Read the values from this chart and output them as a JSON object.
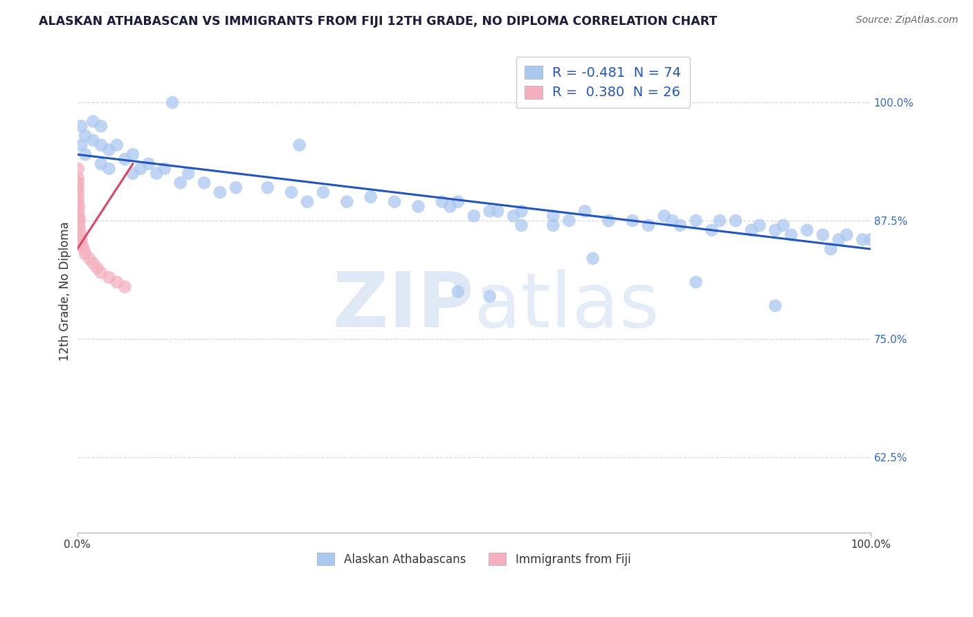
{
  "title": "ALASKAN ATHABASCAN VS IMMIGRANTS FROM FIJI 12TH GRADE, NO DIPLOMA CORRELATION CHART",
  "source": "Source: ZipAtlas.com",
  "ylabel": "12th Grade, No Diploma",
  "right_yticks": [
    0.625,
    0.75,
    0.875,
    1.0
  ],
  "right_yticklabels": [
    "62.5%",
    "75.0%",
    "87.5%",
    "100.0%"
  ],
  "xlim": [
    0.0,
    1.0
  ],
  "ylim": [
    0.545,
    1.055
  ],
  "legend1_label": "R = -0.481  N = 74",
  "legend2_label": "R =  0.380  N = 26",
  "legend1_color": "#aac8f0",
  "legend2_color": "#f4b0c0",
  "blue_scatter_color": "#aac8f0",
  "pink_scatter_color": "#f4b0c0",
  "blue_line_color": "#2255bb",
  "pink_line_color": "#dd4466",
  "watermark_zip": "ZIP",
  "watermark_atlas": "atlas",
  "watermark_color_zip": "#c5d8ee",
  "watermark_color_atlas": "#c5d8ee",
  "grid_color": "#d0d8e8",
  "bg_color": "#ffffff",
  "title_color": "#1a1a3a",
  "axis_color": "#333333",
  "blue_x": [
    0.005,
    0.005,
    0.01,
    0.01,
    0.02,
    0.02,
    0.03,
    0.03,
    0.03,
    0.04,
    0.04,
    0.05,
    0.06,
    0.07,
    0.07,
    0.08,
    0.09,
    0.1,
    0.11,
    0.13,
    0.14,
    0.16,
    0.18,
    0.2,
    0.24,
    0.27,
    0.29,
    0.31,
    0.34,
    0.37,
    0.4,
    0.43,
    0.46,
    0.47,
    0.48,
    0.5,
    0.52,
    0.53,
    0.55,
    0.56,
    0.6,
    0.62,
    0.64,
    0.67,
    0.7,
    0.72,
    0.74,
    0.75,
    0.76,
    0.78,
    0.8,
    0.81,
    0.83,
    0.85,
    0.86,
    0.88,
    0.89,
    0.9,
    0.92,
    0.94,
    0.96,
    0.97,
    0.99,
    1.0,
    0.12,
    0.28,
    0.48,
    0.52,
    0.56,
    0.6,
    0.65,
    0.78,
    0.88,
    0.95
  ],
  "blue_y": [
    0.955,
    0.975,
    0.945,
    0.965,
    0.96,
    0.98,
    0.935,
    0.955,
    0.975,
    0.93,
    0.95,
    0.955,
    0.94,
    0.925,
    0.945,
    0.93,
    0.935,
    0.925,
    0.93,
    0.915,
    0.925,
    0.915,
    0.905,
    0.91,
    0.91,
    0.905,
    0.895,
    0.905,
    0.895,
    0.9,
    0.895,
    0.89,
    0.895,
    0.89,
    0.895,
    0.88,
    0.885,
    0.885,
    0.88,
    0.885,
    0.88,
    0.875,
    0.885,
    0.875,
    0.875,
    0.87,
    0.88,
    0.875,
    0.87,
    0.875,
    0.865,
    0.875,
    0.875,
    0.865,
    0.87,
    0.865,
    0.87,
    0.86,
    0.865,
    0.86,
    0.855,
    0.86,
    0.855,
    0.855,
    1.0,
    0.955,
    0.8,
    0.795,
    0.87,
    0.87,
    0.835,
    0.81,
    0.785,
    0.845
  ],
  "pink_x": [
    0.001,
    0.001,
    0.001,
    0.001,
    0.001,
    0.001,
    0.001,
    0.001,
    0.001,
    0.002,
    0.002,
    0.002,
    0.003,
    0.003,
    0.004,
    0.005,
    0.006,
    0.008,
    0.01,
    0.015,
    0.02,
    0.025,
    0.03,
    0.04,
    0.05,
    0.06
  ],
  "pink_y": [
    0.875,
    0.885,
    0.895,
    0.9,
    0.905,
    0.91,
    0.915,
    0.92,
    0.93,
    0.87,
    0.88,
    0.89,
    0.865,
    0.875,
    0.86,
    0.855,
    0.85,
    0.845,
    0.84,
    0.835,
    0.83,
    0.825,
    0.82,
    0.815,
    0.81,
    0.805
  ],
  "blue_trend_x": [
    0.0,
    1.0
  ],
  "blue_trend_y": [
    0.945,
    0.845
  ],
  "pink_trend_x": [
    0.0,
    0.07
  ],
  "pink_trend_y": [
    0.845,
    0.935
  ],
  "scatter_size": 180
}
